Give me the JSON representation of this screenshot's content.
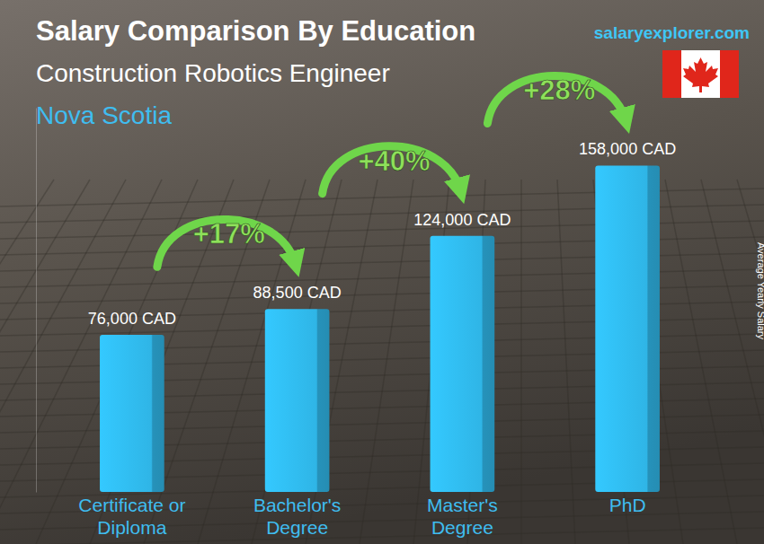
{
  "chart_data": {
    "type": "bar",
    "title": "Salary Comparison By Education",
    "subtitle": "Construction Robotics Engineer",
    "region": "Nova Scotia",
    "source": "salaryexplorer.com",
    "y_label": "Average Yearly Salary",
    "categories": [
      "Certificate or Diploma",
      "Bachelor's Degree",
      "Master's Degree",
      "PhD"
    ],
    "values": [
      76000,
      88500,
      124000,
      158000
    ],
    "value_labels": [
      "76,000 CAD",
      "88,500 CAD",
      "124,000 CAD",
      "158,000 CAD"
    ],
    "annotations": [
      "+17%",
      "+40%",
      "+28%"
    ],
    "color": "#2fb5e6",
    "ylim": [
      0,
      186000
    ],
    "grid": false,
    "tick_labels": false,
    "data_labels": true
  }
}
